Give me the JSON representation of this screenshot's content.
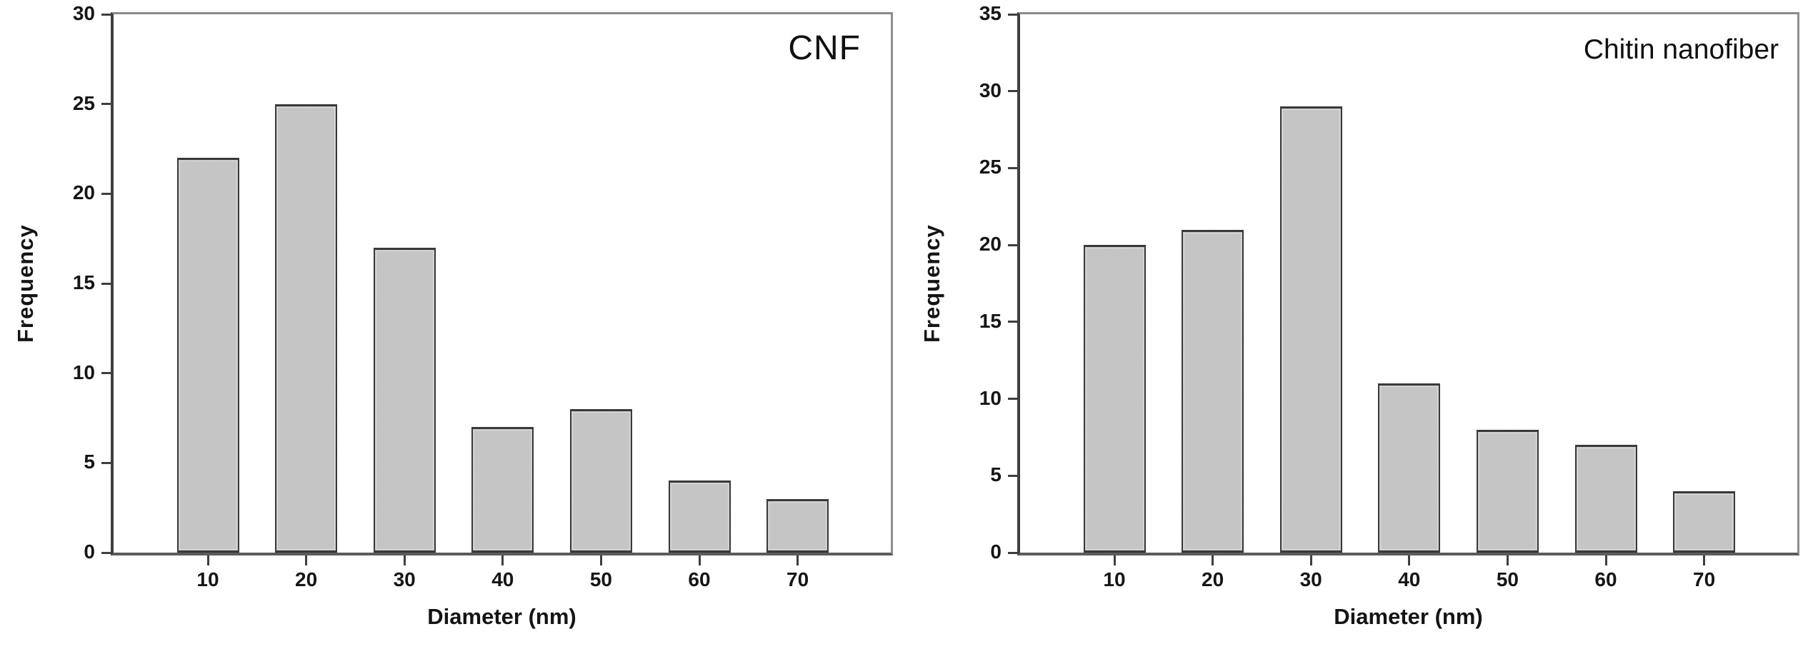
{
  "figure": {
    "background": "#ffffff",
    "text_color": "#141414",
    "axis_color": "#3f3f3f",
    "frame_color": "#8a8a8a"
  },
  "chart_data": [
    {
      "type": "bar",
      "panel": "left",
      "title": "CNF",
      "xlabel": "Diameter (nm)",
      "ylabel": "Frequency",
      "categories": [
        "10",
        "20",
        "30",
        "40",
        "50",
        "60",
        "70"
      ],
      "values": [
        22,
        25,
        17,
        7,
        8,
        4,
        3
      ],
      "ylim": [
        0,
        30
      ],
      "yticks": [
        0,
        5,
        10,
        15,
        20,
        25,
        30
      ],
      "grid": false,
      "legend": false,
      "bar_fill": "#c5c5c5",
      "bar_border": "#3a3a3a"
    },
    {
      "type": "bar",
      "panel": "right",
      "title": "Chitin nanofiber",
      "xlabel": "Diameter (nm)",
      "ylabel": "Frequency",
      "categories": [
        "10",
        "20",
        "30",
        "40",
        "50",
        "60",
        "70"
      ],
      "values": [
        20,
        21,
        29,
        11,
        8,
        7,
        4
      ],
      "ylim": [
        0,
        35
      ],
      "yticks": [
        0,
        5,
        10,
        15,
        20,
        25,
        30,
        35
      ],
      "grid": false,
      "legend": false,
      "bar_fill": "#c5c5c5",
      "bar_border": "#3a3a3a"
    }
  ]
}
